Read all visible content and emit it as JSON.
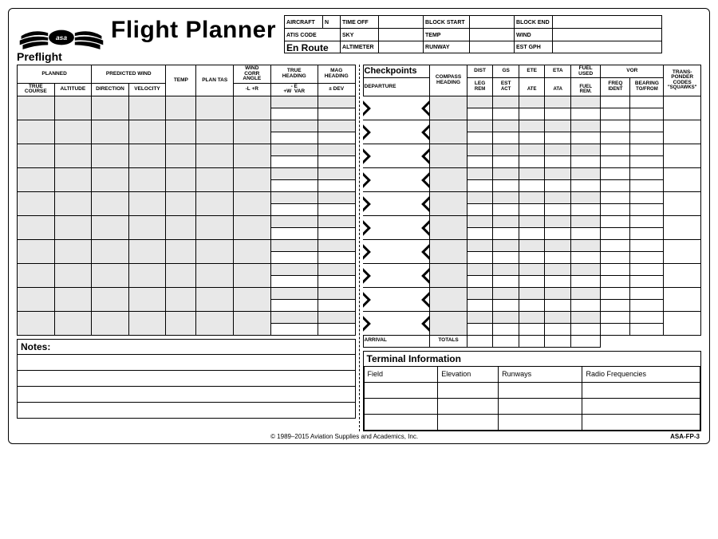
{
  "title": "Flight Planner",
  "logo_text": "asa",
  "preflight_label": "Preflight",
  "enroute_label": "En Route",
  "checkpoints_label": "Checkpoints",
  "departure_label": "DEPARTURE",
  "arrival_label": "ARRIVAL",
  "totals_label": "TOTALS",
  "notes_label": "Notes:",
  "terminal_label": "Terminal Information",
  "top_info": {
    "row1": [
      "AIRCRAFT",
      "N",
      "TIME OFF",
      "",
      "BLOCK START",
      "",
      "BLOCK END",
      ""
    ],
    "row2": [
      "ATIS CODE",
      "",
      "SKY",
      "",
      "TEMP",
      "",
      "WIND",
      ""
    ],
    "row3": [
      "",
      "",
      "ALTIMETER",
      "",
      "RUNWAY",
      "",
      "EST GPH",
      ""
    ]
  },
  "preflight_headers": {
    "group_row": [
      "PLANNED",
      "PREDICTED WIND",
      "TEMP",
      "PLAN TAS",
      "WIND CORR ANGLE",
      "TRUE HEADING",
      "MAG HEADING"
    ],
    "group_span": [
      2,
      2,
      1,
      1,
      1,
      1,
      1
    ],
    "row2": [
      "TRUE COURSE",
      "ALTITUDE",
      "DIRECTION",
      "VELOCITY",
      "",
      "",
      "-L  +R",
      "- E  +W  VAR",
      "± DEV"
    ]
  },
  "enroute_headers": {
    "group_row": [
      "COMPASS HEADING",
      "DIST",
      "GS",
      "ETE",
      "ETA",
      "FUEL USED",
      "VOR",
      "TRANS- PONDER CODES"
    ],
    "row2a": [
      "LEG",
      "EST",
      "",
      "",
      "",
      "FREQ",
      "BEARING",
      ""
    ],
    "row2b": [
      "REM",
      "ACT",
      "ATE",
      "ATA",
      "FUEL REM.",
      "IDENT",
      "TO/FROM",
      "\"SQUAWKS\""
    ]
  },
  "terminal_headers": [
    "Field",
    "Elevation",
    "Runways",
    "Radio Frequencies"
  ],
  "preflight_rows": 10,
  "checkpoint_rows": 10,
  "notes_lines": 4,
  "terminal_rows": 3,
  "colors": {
    "shade": "#e8e8e8",
    "line": "#000000",
    "bg": "#ffffff"
  },
  "footer_copyright": "© 1989–2015 Aviation Supplies and Academics, Inc.",
  "footer_code": "ASA-FP-3"
}
